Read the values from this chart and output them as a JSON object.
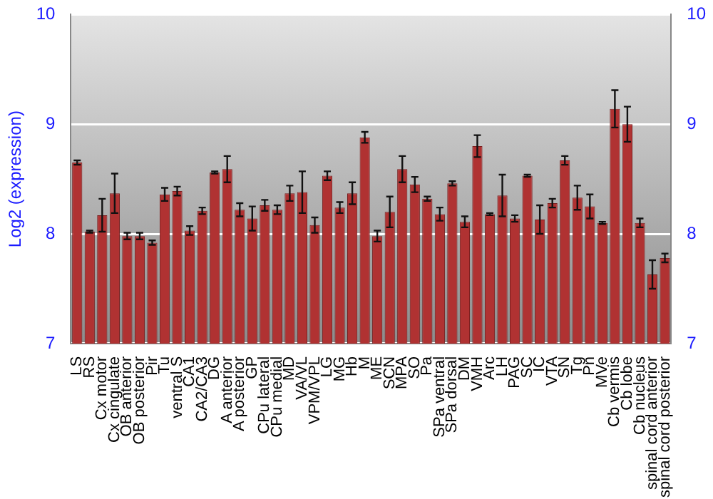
{
  "chart_data": {
    "type": "bar",
    "ylabel": "Log2 (expression)",
    "categories": [
      "LS",
      "RS",
      "Cx motor",
      "Cx cingulate",
      "OB anterior",
      "OB posterior",
      "Pir",
      "Tu",
      "ventral S",
      "CA1",
      "CA2/CA3",
      "DG",
      "A anterior",
      "A posterior",
      "GP",
      "CPu lateral",
      "CPu medial",
      "MD",
      "VA/VL",
      "VPM/VPL",
      "LG",
      "MG",
      "Hb",
      "M",
      "ME",
      "SCN",
      "MPA",
      "SO",
      "Pa",
      "SPa ventral",
      "SPa dorsal",
      "DM",
      "VMH",
      "Arc",
      "LH",
      "PAG",
      "SC",
      "IC",
      "VTA",
      "SN",
      "Tg",
      "Pn",
      "MVe",
      "Cb vermis",
      "Cb lobe",
      "Cb nucleus",
      "spinal cord anterior",
      "spinal cord posterior"
    ],
    "values": [
      8.65,
      8.02,
      8.17,
      8.37,
      7.98,
      7.98,
      7.92,
      8.36,
      8.39,
      8.03,
      8.21,
      8.56,
      8.59,
      8.22,
      8.14,
      8.26,
      8.22,
      8.37,
      8.38,
      8.08,
      8.53,
      8.24,
      8.37,
      8.88,
      7.98,
      8.2,
      8.59,
      8.45,
      8.32,
      8.18,
      8.46,
      8.11,
      8.8,
      8.18,
      8.35,
      8.14,
      8.53,
      8.13,
      8.28,
      8.67,
      8.33,
      8.25,
      8.1,
      9.14,
      9.0,
      8.1,
      7.63,
      7.78
    ],
    "errors": [
      0.02,
      0.01,
      0.15,
      0.18,
      0.03,
      0.03,
      0.02,
      0.06,
      0.04,
      0.04,
      0.03,
      0.01,
      0.12,
      0.06,
      0.11,
      0.05,
      0.04,
      0.07,
      0.19,
      0.07,
      0.04,
      0.05,
      0.1,
      0.05,
      0.05,
      0.14,
      0.12,
      0.07,
      0.02,
      0.06,
      0.02,
      0.05,
      0.1,
      0.01,
      0.19,
      0.03,
      0.01,
      0.13,
      0.04,
      0.04,
      0.11,
      0.11,
      0.01,
      0.17,
      0.16,
      0.04,
      0.13,
      0.04
    ],
    "color": "#b03232",
    "ylim": [
      7,
      10
    ],
    "yticks": [
      7,
      8,
      9,
      10
    ],
    "y2lim": [
      7,
      10
    ],
    "y2ticks": [
      7,
      8,
      9,
      10
    ],
    "grid": "y",
    "legend": false
  }
}
